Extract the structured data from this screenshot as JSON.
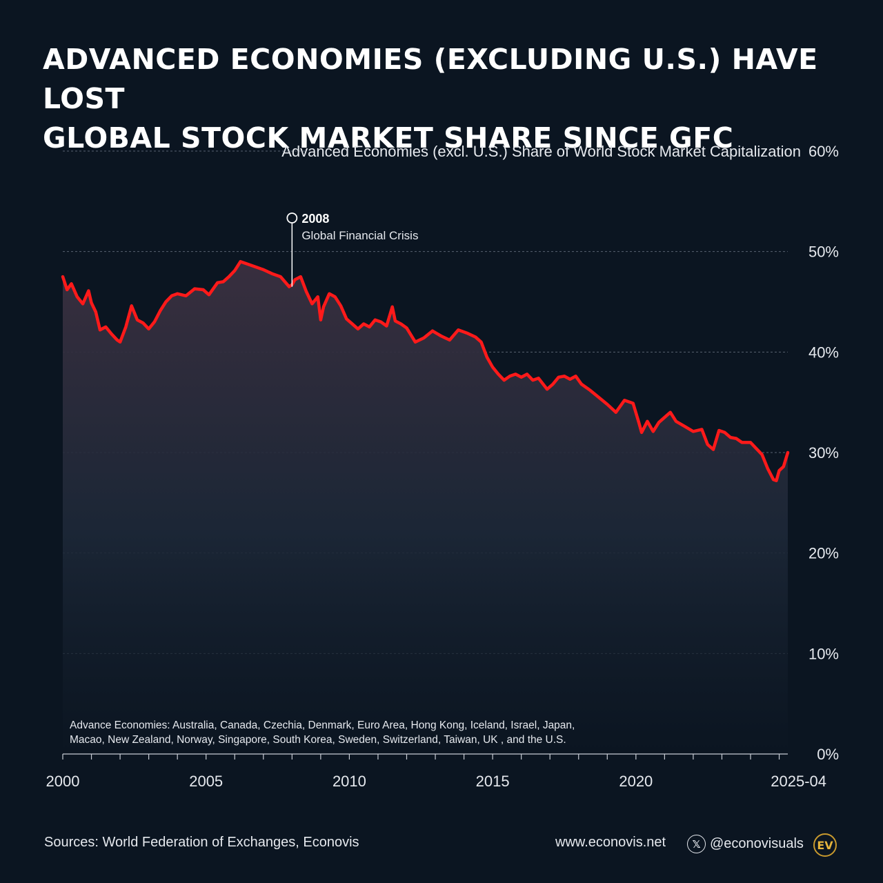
{
  "title": {
    "line1": "ADVANCED ECONOMIES (EXCLUDING U.S.) HAVE LOST",
    "line2": "GLOBAL STOCK MARKET SHARE SINCE GFC"
  },
  "chart_data": {
    "type": "area",
    "title": "Advanced Economies (excl. U.S.) Share of World Stock Market Capitalization",
    "xlabel": "",
    "ylabel": "",
    "xlim": [
      2000.0,
      2025.3
    ],
    "ylim": [
      0,
      60
    ],
    "y_ticks": [
      {
        "value": 0,
        "label": "0%"
      },
      {
        "value": 10,
        "label": "10%"
      },
      {
        "value": 20,
        "label": "20%"
      },
      {
        "value": 30,
        "label": "30%"
      },
      {
        "value": 40,
        "label": "40%"
      },
      {
        "value": 50,
        "label": "50%"
      },
      {
        "value": 60,
        "label": "60%"
      }
    ],
    "x_ticks": [
      {
        "value": 2000,
        "label": "2000"
      },
      {
        "value": 2005,
        "label": "2005"
      },
      {
        "value": 2010,
        "label": "2010"
      },
      {
        "value": 2015,
        "label": "2015"
      },
      {
        "value": 2020,
        "label": "2020"
      },
      {
        "value": 2025.3,
        "label": "2025-04"
      }
    ],
    "grid": true,
    "series": [
      {
        "name": "Advanced Economies (excl. U.S.) share",
        "color": "#ff1a1a",
        "x": [
          2000.0,
          2000.15,
          2000.3,
          2000.5,
          2000.7,
          2000.9,
          2001.0,
          2001.15,
          2001.3,
          2001.5,
          2001.7,
          2001.9,
          2002.0,
          2002.2,
          2002.4,
          2002.6,
          2002.8,
          2003.0,
          2003.2,
          2003.4,
          2003.6,
          2003.8,
          2004.0,
          2004.3,
          2004.6,
          2004.9,
          2005.1,
          2005.4,
          2005.6,
          2005.8,
          2006.0,
          2006.2,
          2006.4,
          2006.7,
          2007.0,
          2007.3,
          2007.6,
          2007.9,
          2008.0,
          2008.1,
          2008.3,
          2008.5,
          2008.7,
          2008.9,
          2009.0,
          2009.1,
          2009.3,
          2009.5,
          2009.7,
          2009.9,
          2010.1,
          2010.3,
          2010.5,
          2010.7,
          2010.9,
          2011.1,
          2011.3,
          2011.5,
          2011.6,
          2011.8,
          2012.0,
          2012.3,
          2012.6,
          2012.9,
          2013.2,
          2013.5,
          2013.8,
          2014.1,
          2014.4,
          2014.6,
          2014.8,
          2015.0,
          2015.2,
          2015.4,
          2015.6,
          2015.8,
          2016.0,
          2016.2,
          2016.4,
          2016.6,
          2016.9,
          2017.1,
          2017.3,
          2017.5,
          2017.7,
          2017.9,
          2018.1,
          2018.4,
          2018.7,
          2019.0,
          2019.3,
          2019.6,
          2019.9,
          2020.1,
          2020.2,
          2020.4,
          2020.6,
          2020.8,
          2021.0,
          2021.2,
          2021.4,
          2021.7,
          2022.0,
          2022.3,
          2022.5,
          2022.7,
          2022.9,
          2023.1,
          2023.3,
          2023.5,
          2023.7,
          2024.0,
          2024.2,
          2024.4,
          2024.6,
          2024.8,
          2024.9,
          2025.0,
          2025.15,
          2025.3
        ],
        "values": [
          47.5,
          46.2,
          46.8,
          45.5,
          44.8,
          46.1,
          44.9,
          44.0,
          42.2,
          42.5,
          41.8,
          41.2,
          41.0,
          42.5,
          44.6,
          43.2,
          42.9,
          42.3,
          43.0,
          44.1,
          45.0,
          45.6,
          45.8,
          45.6,
          46.3,
          46.2,
          45.7,
          46.9,
          47.0,
          47.5,
          48.1,
          49.0,
          48.8,
          48.5,
          48.2,
          47.8,
          47.5,
          46.5,
          46.7,
          47.2,
          47.5,
          46.0,
          44.8,
          45.5,
          43.2,
          44.5,
          45.8,
          45.5,
          44.6,
          43.3,
          42.8,
          42.3,
          42.8,
          42.5,
          43.2,
          43.0,
          42.6,
          44.5,
          43.1,
          42.8,
          42.4,
          41.0,
          41.4,
          42.1,
          41.6,
          41.2,
          42.2,
          41.9,
          41.5,
          41.0,
          39.5,
          38.5,
          37.8,
          37.2,
          37.6,
          37.8,
          37.5,
          37.8,
          37.2,
          37.4,
          36.3,
          36.8,
          37.5,
          37.6,
          37.3,
          37.6,
          36.8,
          36.2,
          35.5,
          34.8,
          34.0,
          35.2,
          34.9,
          33.0,
          32.0,
          33.1,
          32.1,
          33.0,
          33.5,
          34.0,
          33.1,
          32.6,
          32.1,
          32.3,
          30.8,
          30.3,
          32.2,
          32.0,
          31.5,
          31.4,
          31.0,
          31.0,
          30.4,
          29.8,
          28.4,
          27.3,
          27.2,
          28.2,
          28.6,
          30.0
        ]
      }
    ],
    "annotations": [
      {
        "x": 2008.0,
        "y": 46.5,
        "year": "2008",
        "text": "Global Financial Crisis"
      }
    ],
    "note": {
      "line1": "Advance Economies: Australia, Canada, Czechia, Denmark, Euro Area, Hong Kong, Iceland, Israel, Japan,",
      "line2": "Macao, New Zealand, Norway, Singapore, South Korea, Sweden, Switzerland, Taiwan, UK , and the U.S."
    }
  },
  "footer": {
    "sources": "Sources: World Federation of Exchanges, Econovis",
    "website": "www.econovis.net",
    "x_icon": "x-logo-icon",
    "x_glyph": "𝕏",
    "handle": "@econovisuals",
    "logo_text": "EV"
  },
  "colors": {
    "background": "#0b1521",
    "line": "#ff1a1a",
    "grid": "#5a6472",
    "logo": "#e5b43c"
  }
}
